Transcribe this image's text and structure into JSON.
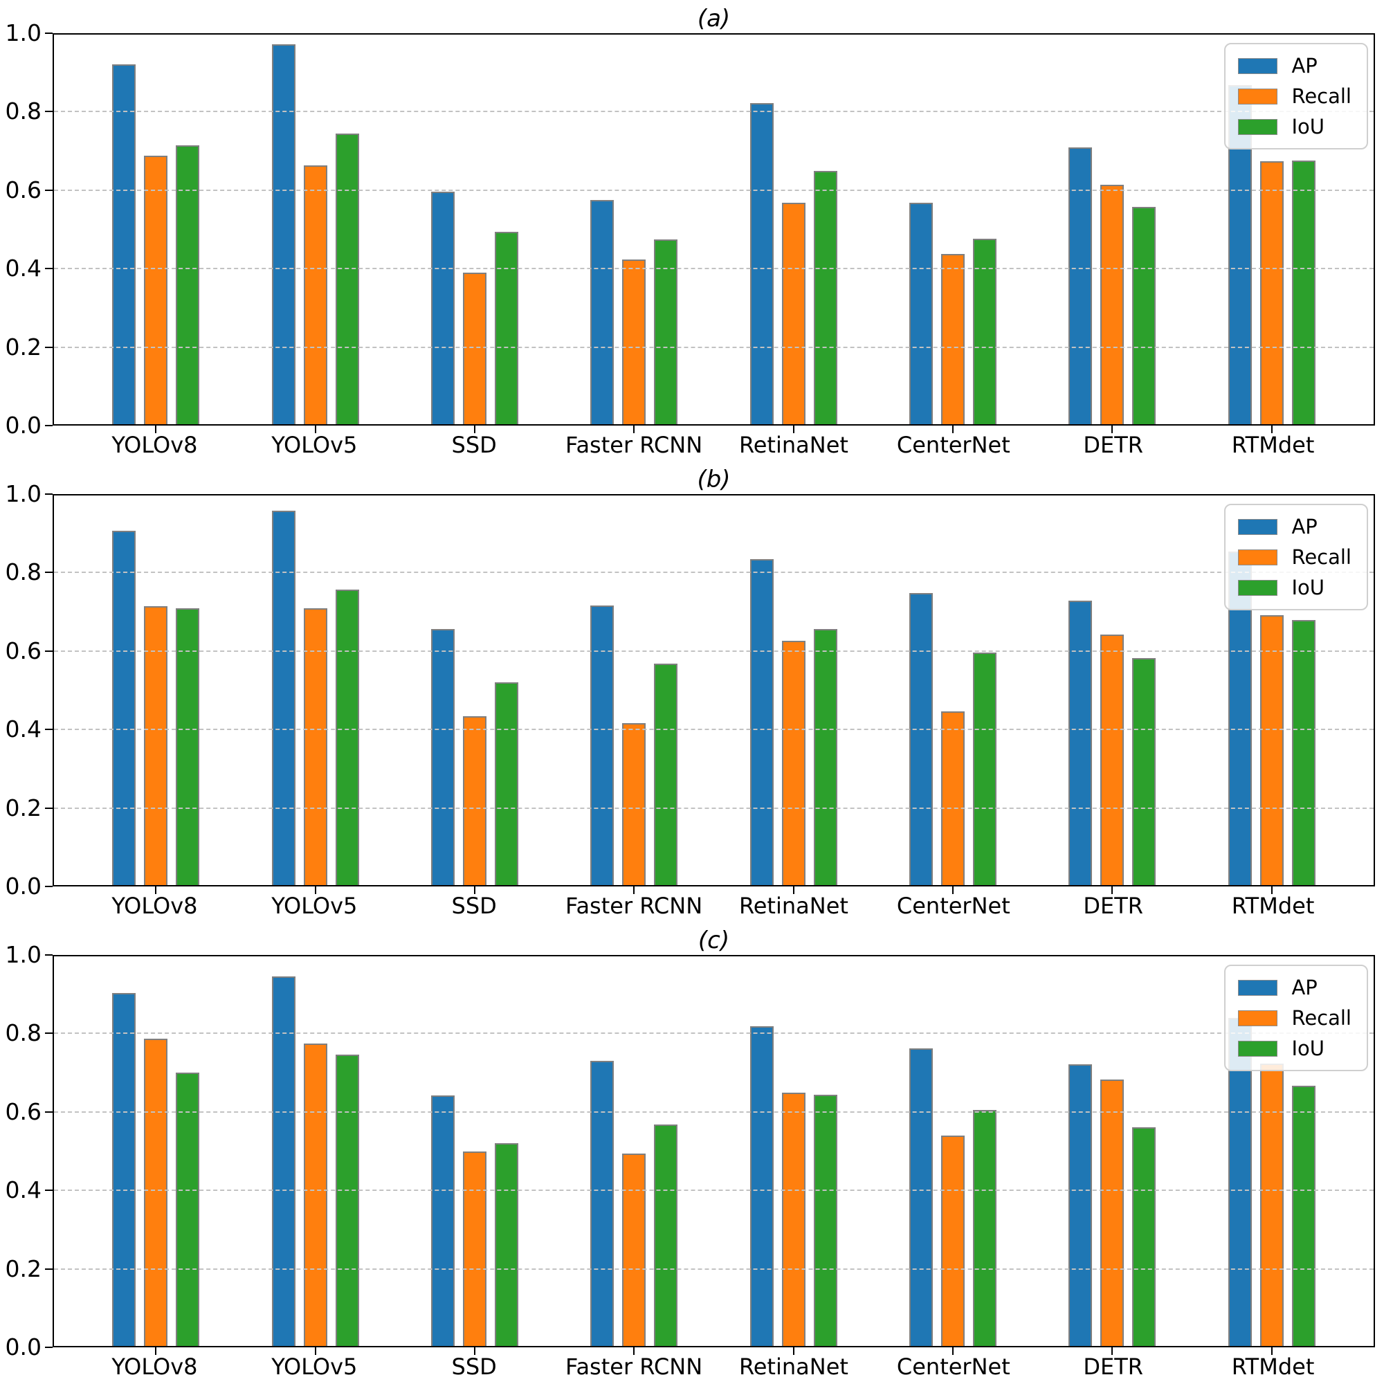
{
  "figure": {
    "background": "#ffffff",
    "spine_color": "#000000",
    "grid_color": "#c2c2c2",
    "bar_edge_color": "#7f7f7f"
  },
  "chart_data": [
    {
      "type": "bar",
      "title": "(a)",
      "categories": [
        "YOLOv8",
        "YOLOv5",
        "SSD",
        "Faster RCNN",
        "RetinaNet",
        "CenterNet",
        "DETR",
        "RTMdet"
      ],
      "series": [
        {
          "name": "AP",
          "color": "#1f77b4",
          "values": [
            0.918,
            0.968,
            0.592,
            0.572,
            0.818,
            0.565,
            0.706,
            0.864
          ]
        },
        {
          "name": "Recall",
          "color": "#ff7f0e",
          "values": [
            0.685,
            0.659,
            0.386,
            0.42,
            0.565,
            0.434,
            0.61,
            0.67
          ]
        },
        {
          "name": "IoU",
          "color": "#2ca02c",
          "values": [
            0.711,
            0.74,
            0.491,
            0.471,
            0.646,
            0.473,
            0.553,
            0.672
          ]
        }
      ],
      "xlabel": "",
      "ylabel": "",
      "ylim": [
        0.0,
        1.0
      ],
      "yticks": [
        "0.0",
        "0.2",
        "0.4",
        "0.6",
        "0.8",
        "1.0"
      ],
      "grid": "horizontal-dashed",
      "legend_position": "upper right"
    },
    {
      "type": "bar",
      "title": "(b)",
      "categories": [
        "YOLOv8",
        "YOLOv5",
        "SSD",
        "Faster RCNN",
        "RetinaNet",
        "CenterNet",
        "DETR",
        "RTMdet"
      ],
      "series": [
        {
          "name": "AP",
          "color": "#1f77b4",
          "values": [
            0.903,
            0.955,
            0.652,
            0.713,
            0.83,
            0.744,
            0.725,
            0.85
          ]
        },
        {
          "name": "Recall",
          "color": "#ff7f0e",
          "values": [
            0.71,
            0.705,
            0.431,
            0.412,
            0.622,
            0.443,
            0.638,
            0.687
          ]
        },
        {
          "name": "IoU",
          "color": "#2ca02c",
          "values": [
            0.705,
            0.753,
            0.517,
            0.564,
            0.653,
            0.593,
            0.578,
            0.676
          ]
        }
      ],
      "xlabel": "",
      "ylabel": "",
      "ylim": [
        0.0,
        1.0
      ],
      "yticks": [
        "0.0",
        "0.2",
        "0.4",
        "0.6",
        "0.8",
        "1.0"
      ],
      "grid": "horizontal-dashed",
      "legend_position": "upper right"
    },
    {
      "type": "bar",
      "title": "(c)",
      "categories": [
        "YOLOv8",
        "YOLOv5",
        "SSD",
        "Faster RCNN",
        "RetinaNet",
        "CenterNet",
        "DETR",
        "RTMdet"
      ],
      "series": [
        {
          "name": "AP",
          "color": "#1f77b4",
          "values": [
            0.9,
            0.942,
            0.638,
            0.727,
            0.815,
            0.759,
            0.718,
            0.836
          ]
        },
        {
          "name": "Recall",
          "color": "#ff7f0e",
          "values": [
            0.783,
            0.77,
            0.496,
            0.491,
            0.645,
            0.536,
            0.679,
            0.72
          ]
        },
        {
          "name": "IoU",
          "color": "#2ca02c",
          "values": [
            0.697,
            0.743,
            0.517,
            0.564,
            0.64,
            0.602,
            0.557,
            0.663
          ]
        }
      ],
      "xlabel": "",
      "ylabel": "",
      "ylim": [
        0.0,
        1.0
      ],
      "yticks": [
        "0.0",
        "0.2",
        "0.4",
        "0.6",
        "0.8",
        "1.0"
      ],
      "grid": "horizontal-dashed",
      "legend_position": "upper right"
    }
  ]
}
